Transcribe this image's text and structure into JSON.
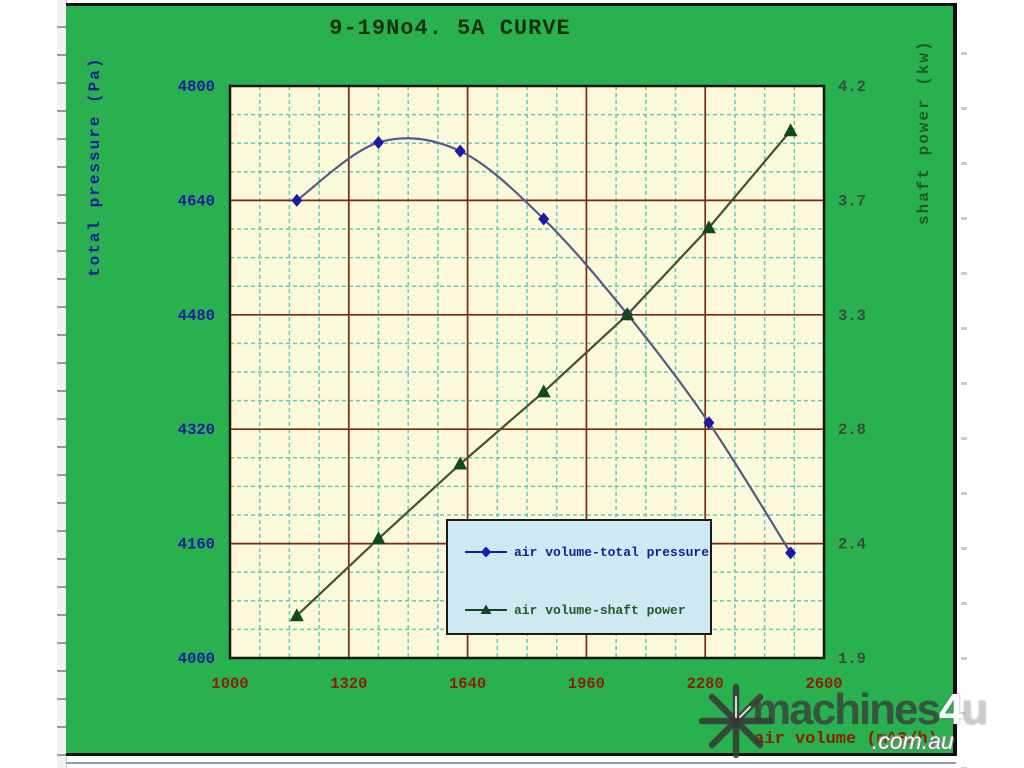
{
  "page": {
    "background": "#ffffff"
  },
  "panel": {
    "background": "#29b14f",
    "border_color": "#101010"
  },
  "chart_data": {
    "type": "line",
    "title": "9-19No4. 5A CURVE",
    "title_color": "#11310f",
    "x_axis": {
      "label": "air volume (m^3/h)",
      "ticks": [
        "1000",
        "1320",
        "1640",
        "1960",
        "2280",
        "2600"
      ],
      "range": [
        1000,
        2600
      ],
      "label_color": "#8a1f02",
      "tick_color": "#8a1f02"
    },
    "y_axis_left": {
      "label": "total pressure (Pa)",
      "ticks": [
        "4800",
        "4640",
        "4480",
        "4320",
        "4160",
        "4000"
      ],
      "range": [
        4000,
        4800
      ],
      "label_color": "#1b1b9e",
      "tick_color": "#1b1b9e"
    },
    "y_axis_right": {
      "label": "shaft power (kw)",
      "ticks": [
        "4.2",
        "3.7",
        "3.3",
        "2.8",
        "2.4",
        "1.9"
      ],
      "range": [
        1.9,
        4.2
      ],
      "label_color": "#1d5a28",
      "tick_color": "#3b4a40"
    },
    "plot": {
      "background": "#fbf9d9",
      "minor_grid_color": "#63cabc",
      "major_grid_color": "#7e2813",
      "border_color": "#141414",
      "majors": 5,
      "minor_per_major": 4,
      "grid": "on"
    },
    "series": [
      {
        "name": "air volume-total pressure",
        "axis": "left",
        "marker": "diamond",
        "smooth": true,
        "line_color": "#565b86",
        "marker_color": "#1a1aa6",
        "points": [
          [
            1180,
            4640
          ],
          [
            1400,
            4721
          ],
          [
            1620,
            4709
          ],
          [
            1845,
            4614
          ],
          [
            2070,
            4481
          ],
          [
            2290,
            4329
          ],
          [
            2510,
            4147
          ]
        ]
      },
      {
        "name": "air volume-shaft power",
        "axis": "right",
        "marker": "triangle",
        "smooth": false,
        "line_color": "#44522e",
        "marker_color": "#12481d",
        "points": [
          [
            1180,
            2.07
          ],
          [
            1400,
            2.38
          ],
          [
            1620,
            2.68
          ],
          [
            1845,
            2.97
          ],
          [
            2070,
            3.28
          ],
          [
            2290,
            3.63
          ],
          [
            2510,
            4.02
          ]
        ]
      }
    ],
    "legend": {
      "position": "inside-bottom-center",
      "background": "#cfe9f2",
      "border_color": "#1a1a1a",
      "entries": [
        {
          "label": "air volume-total pressure",
          "text_color": "#1b1b9a"
        },
        {
          "label": "air volume-shaft power",
          "text_color": "#1d5a28"
        }
      ]
    }
  },
  "watermark": {
    "brand_prefix": "machines",
    "brand_num": "4",
    "brand_suffix": "u",
    "domain": ".com.au"
  }
}
